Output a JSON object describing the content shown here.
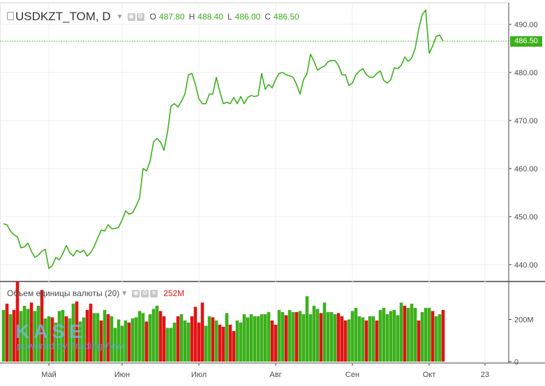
{
  "header": {
    "symbol": "USDKZT_TOM, D",
    "ohlc": [
      {
        "label": "O",
        "value": "487.80"
      },
      {
        "label": "H",
        "value": "488.40"
      },
      {
        "label": "L",
        "value": "486.00"
      },
      {
        "label": "C",
        "value": "486.50"
      }
    ]
  },
  "volume_header": {
    "title": "Объем единицы валюты (20)",
    "value": "252M"
  },
  "logo": {
    "brand": "KASE",
    "powered": "powered by TradingView"
  },
  "colors": {
    "line": "#3cb01c",
    "up": "#3cb01c",
    "down": "#e01414"
  },
  "chart_data": [
    {
      "type": "line",
      "title": "USDKZT_TOM, D",
      "last_price": "486.50",
      "y_ticks": [
        "490.00",
        "480.00",
        "470.00",
        "460.00",
        "450.00",
        "440.00"
      ],
      "ylim": [
        436.5,
        494.5
      ],
      "x_ticks": [
        {
          "label": "Май",
          "index": 13
        },
        {
          "label": "Июн",
          "index": 34
        },
        {
          "label": "Июл",
          "index": 56
        },
        {
          "label": "Авг",
          "index": 78
        },
        {
          "label": "Сен",
          "index": 100
        },
        {
          "label": "Окт",
          "index": 122
        },
        {
          "label": "23",
          "index": 138
        }
      ],
      "values": [
        448.5,
        448.3,
        447.0,
        446.2,
        445.8,
        443.5,
        443.7,
        444.5,
        442.8,
        441.5,
        442.0,
        442.8,
        443.2,
        439.2,
        439.8,
        441.5,
        441.0,
        442.3,
        444.0,
        442.5,
        441.8,
        443.0,
        442.5,
        443.0,
        441.8,
        442.5,
        443.8,
        445.5,
        447.2,
        447.0,
        448.3,
        447.5,
        447.5,
        447.8,
        449.3,
        451.2,
        450.5,
        450.8,
        452.2,
        453.8,
        460.0,
        459.5,
        461.5,
        465.5,
        466.3,
        465.5,
        463.8,
        467.5,
        473.0,
        473.5,
        472.8,
        474.0,
        475.5,
        479.5,
        479.8,
        477.5,
        474.5,
        473.5,
        473.5,
        475.5,
        475.5,
        479.0,
        476.0,
        473.5,
        473.8,
        473.5,
        474.8,
        473.5,
        475.0,
        473.5,
        474.8,
        475.2,
        475.0,
        475.2,
        479.8,
        476.5,
        477.5,
        476.8,
        478.5,
        479.8,
        480.0,
        479.5,
        479.3,
        479.0,
        477.5,
        475.5,
        478.5,
        479.8,
        483.8,
        482.3,
        480.5,
        481.0,
        481.3,
        482.2,
        482.5,
        482.5,
        481.5,
        479.5,
        479.5,
        477.3,
        477.8,
        479.5,
        480.3,
        480.8,
        479.5,
        479.0,
        479.0,
        479.8,
        480.3,
        478.3,
        477.8,
        478.5,
        481.0,
        480.8,
        481.5,
        483.2,
        482.3,
        483.0,
        485.0,
        489.0,
        492.0,
        493.0,
        484.0,
        485.5,
        487.5,
        487.8,
        486.5
      ],
      "volume": {
        "ylabel_ticks": [
          "200M",
          "0"
        ],
        "ymax": 380,
        "values": [
          245,
          275,
          225,
          245,
          380,
          240,
          265,
          250,
          280,
          240,
          265,
          340,
          205,
          215,
          210,
          185,
          240,
          245,
          215,
          205,
          275,
          285,
          190,
          210,
          245,
          275,
          230,
          230,
          195,
          245,
          225,
          215,
          160,
          200,
          170,
          195,
          185,
          205,
          210,
          240,
          230,
          190,
          225,
          250,
          265,
          240,
          215,
          160,
          160,
          185,
          215,
          225,
          195,
          185,
          215,
          260,
          185,
          280,
          170,
          215,
          210,
          195,
          175,
          165,
          230,
          175,
          145,
          195,
          185,
          225,
          210,
          225,
          215,
          215,
          225,
          225,
          235,
          195,
          175,
          245,
          235,
          220,
          245,
          235,
          235,
          240,
          225,
          310,
          225,
          265,
          250,
          230,
          280,
          235,
          235,
          225,
          230,
          215,
          195,
          200,
          240,
          255,
          215,
          210,
          195,
          215,
          215,
          195,
          245,
          255,
          225,
          240,
          245,
          220,
          280,
          265,
          255,
          275,
          255,
          195,
          235,
          255,
          255,
          240,
          215,
          225,
          245
        ],
        "up": [
          1,
          0,
          1,
          0,
          0,
          1,
          1,
          1,
          0,
          1,
          1,
          0,
          1,
          1,
          0,
          1,
          1,
          1,
          0,
          1,
          1,
          0,
          1,
          1,
          0,
          0,
          1,
          1,
          0,
          1,
          0,
          1,
          1,
          1,
          1,
          1,
          0,
          1,
          1,
          1,
          1,
          0,
          1,
          1,
          1,
          0,
          0,
          1,
          1,
          1,
          0,
          1,
          1,
          1,
          0,
          0,
          0,
          0,
          1,
          1,
          0,
          1,
          0,
          0,
          1,
          0,
          0,
          1,
          1,
          1,
          1,
          1,
          1,
          1,
          1,
          1,
          1,
          0,
          0,
          1,
          1,
          0,
          1,
          1,
          0,
          1,
          1,
          1,
          1,
          1,
          1,
          0,
          1,
          1,
          1,
          1,
          0,
          0,
          0,
          1,
          1,
          1,
          1,
          1,
          0,
          1,
          1,
          0,
          1,
          1,
          1,
          1,
          1,
          1,
          1,
          0,
          1,
          1,
          1,
          0,
          1,
          1,
          1,
          0,
          1,
          1,
          0
        ]
      }
    }
  ]
}
